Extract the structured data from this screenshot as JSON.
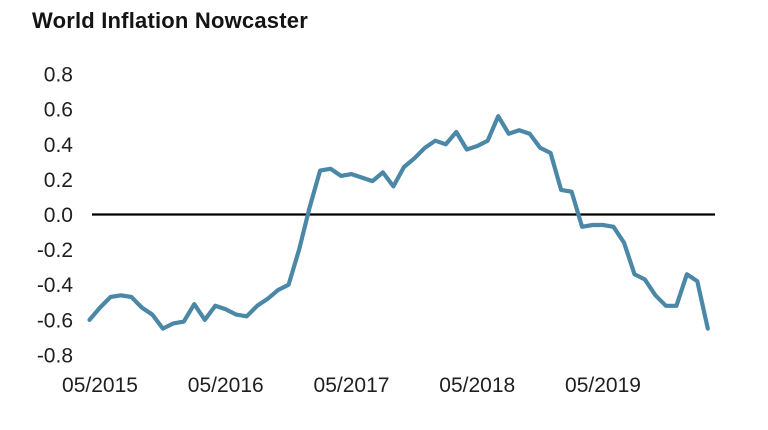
{
  "chart_data": {
    "type": "line",
    "title": "World Inflation Nowcaster",
    "xlabel": "",
    "ylabel": "",
    "ylim": [
      -0.8,
      0.8
    ],
    "grid": false,
    "legend": false,
    "zero_line": true,
    "y_ticks": [
      0.8,
      0.6,
      0.4,
      0.2,
      0.0,
      -0.2,
      -0.4,
      -0.6,
      -0.8
    ],
    "x_tick_labels": [
      "05/2015",
      "05/2016",
      "05/2017",
      "05/2018",
      "05/2019"
    ],
    "x": [
      "04/2015",
      "05/2015",
      "06/2015",
      "07/2015",
      "08/2015",
      "09/2015",
      "10/2015",
      "11/2015",
      "12/2015",
      "01/2016",
      "02/2016",
      "03/2016",
      "04/2016",
      "05/2016",
      "06/2016",
      "07/2016",
      "08/2016",
      "09/2016",
      "10/2016",
      "11/2016",
      "12/2016",
      "01/2017",
      "02/2017",
      "03/2017",
      "04/2017",
      "05/2017",
      "06/2017",
      "07/2017",
      "08/2017",
      "09/2017",
      "10/2017",
      "11/2017",
      "12/2017",
      "01/2018",
      "02/2018",
      "03/2018",
      "04/2018",
      "05/2018",
      "06/2018",
      "07/2018",
      "08/2018",
      "09/2018",
      "10/2018",
      "11/2018",
      "12/2018",
      "01/2019",
      "02/2019",
      "03/2019",
      "04/2019",
      "05/2019",
      "06/2019",
      "07/2019",
      "08/2019",
      "09/2019",
      "10/2019",
      "11/2019",
      "12/2019",
      "01/2020",
      "02/2020",
      "03/2020"
    ],
    "series": [
      {
        "name": "World Inflation Nowcaster",
        "color": "#4b87a6",
        "values": [
          -0.6,
          -0.53,
          -0.47,
          -0.46,
          -0.47,
          -0.53,
          -0.57,
          -0.65,
          -0.62,
          -0.61,
          -0.51,
          -0.6,
          -0.52,
          -0.54,
          -0.57,
          -0.58,
          -0.52,
          -0.48,
          -0.43,
          -0.4,
          -0.2,
          0.04,
          0.25,
          0.26,
          0.22,
          0.23,
          0.21,
          0.19,
          0.24,
          0.16,
          0.27,
          0.32,
          0.38,
          0.42,
          0.4,
          0.47,
          0.37,
          0.39,
          0.42,
          0.56,
          0.46,
          0.48,
          0.46,
          0.38,
          0.35,
          0.14,
          0.13,
          -0.07,
          -0.06,
          -0.06,
          -0.07,
          -0.16,
          -0.34,
          -0.37,
          -0.46,
          -0.52,
          -0.52,
          -0.34,
          -0.38,
          -0.65
        ]
      }
    ],
    "colors": {
      "line": "#4b87a6",
      "zero_line": "#000000",
      "text": "#1f1f1f",
      "title": "#141414",
      "background": "#ffffff"
    }
  }
}
